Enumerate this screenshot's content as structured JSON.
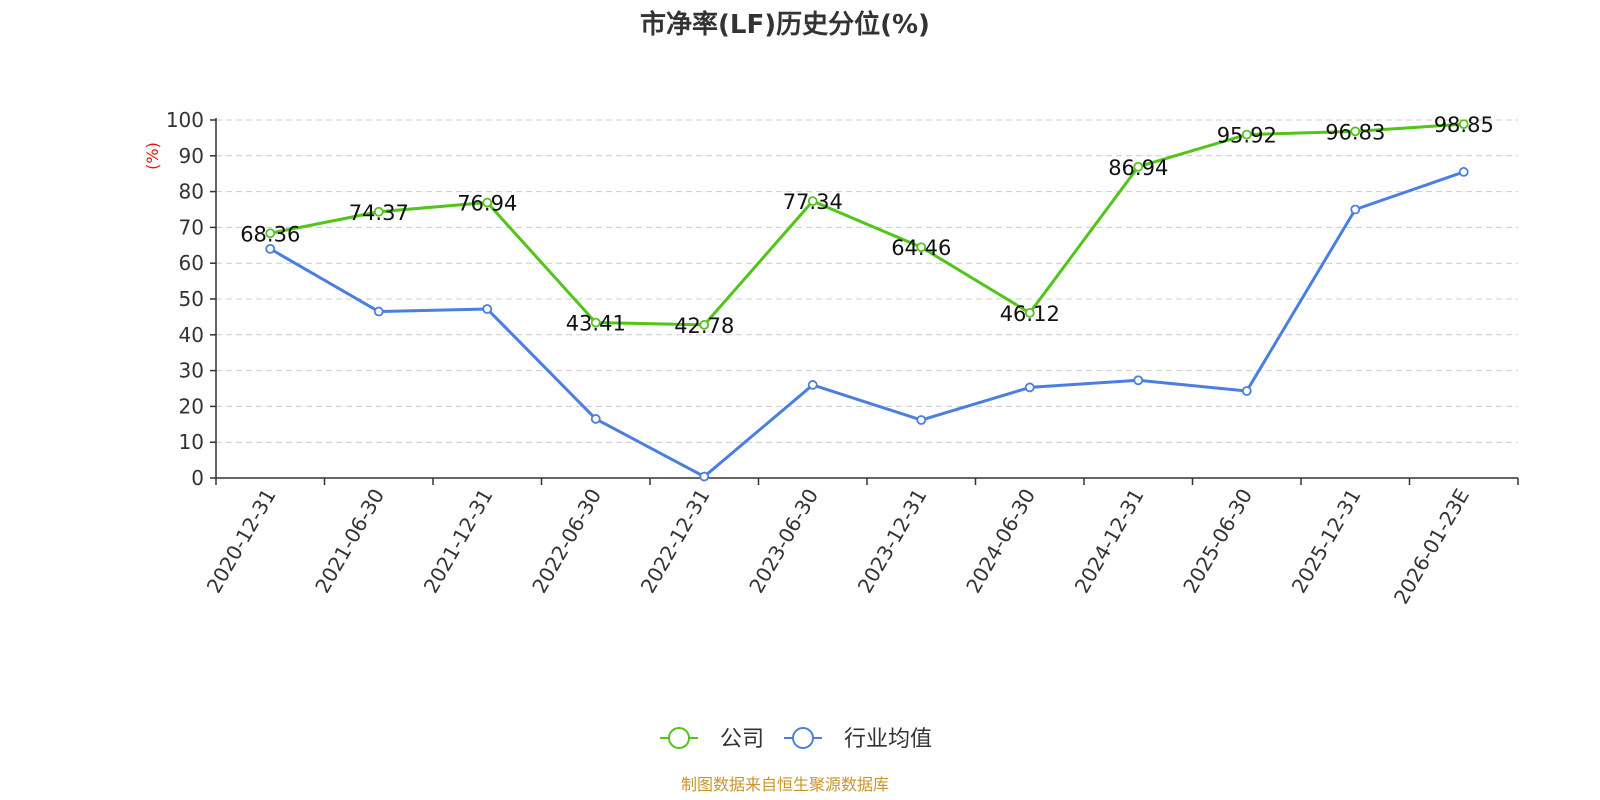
{
  "chart_data": {
    "type": "line",
    "title": "市净率(LF)历史分位(%)",
    "ylabel": "(%)",
    "xlabel": "",
    "ylim": [
      0,
      100
    ],
    "yticks": [
      0,
      10,
      20,
      30,
      40,
      50,
      60,
      70,
      80,
      90,
      100
    ],
    "grid": true,
    "legend_position": "bottom",
    "categories": [
      "2020-12-31",
      "2021-06-30",
      "2021-12-31",
      "2022-06-30",
      "2022-12-31",
      "2023-06-30",
      "2023-12-31",
      "2024-06-30",
      "2024-12-31",
      "2025-06-30",
      "2025-12-31",
      "2026-01-23E"
    ],
    "series": [
      {
        "name": "公司",
        "color": "#52c41a",
        "show_labels": true,
        "values": [
          68.36,
          74.37,
          76.94,
          43.41,
          42.78,
          77.34,
          64.46,
          46.12,
          86.94,
          95.92,
          96.83,
          98.85
        ]
      },
      {
        "name": "行业均值",
        "color": "#4a7ee0",
        "show_labels": false,
        "values": [
          64.0,
          46.5,
          47.2,
          16.5,
          0.4,
          26.0,
          16.2,
          25.3,
          27.3,
          24.3,
          75.0,
          85.5
        ]
      }
    ]
  },
  "footer": {
    "source": "制图数据来自恒生聚源数据库"
  }
}
